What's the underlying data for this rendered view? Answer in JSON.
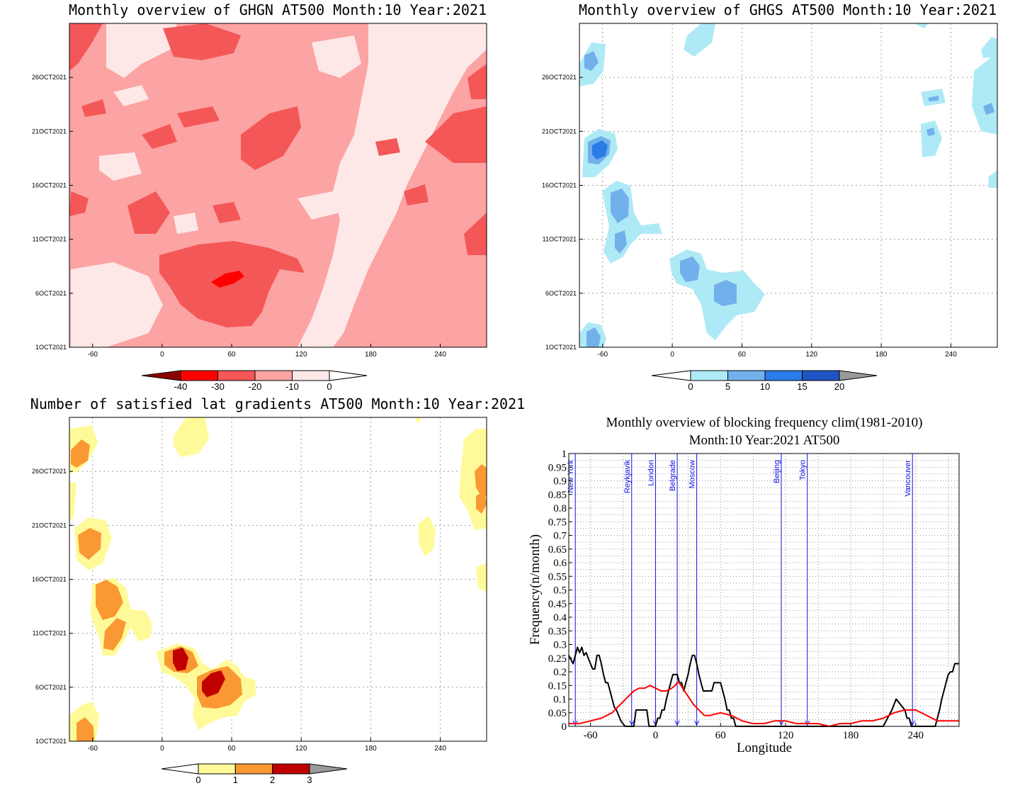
{
  "chart_data": [
    {
      "type": "heatmap",
      "title": "Monthly overview of GHGN AT500 Month:10 Year:2021",
      "x_ticks": [
        "-60",
        "0",
        "60",
        "120",
        "180",
        "240"
      ],
      "x_tick_values": [
        -60,
        0,
        60,
        120,
        180,
        240
      ],
      "xlim": [
        -80,
        280
      ],
      "y_ticks": [
        "1OCT2021",
        "6OCT2021",
        "11OCT2021",
        "16OCT2021",
        "21OCT2021",
        "26OCT2021"
      ],
      "y_tick_values": [
        1,
        6,
        11,
        16,
        21,
        26
      ],
      "ylim": [
        1,
        31
      ],
      "grid": false,
      "colorbar": {
        "levels": [
          -40,
          -30,
          -20,
          -10,
          0
        ],
        "labels": [
          "-40",
          "-30",
          "-20",
          "-10",
          "0"
        ],
        "colors": [
          "#8b0000",
          "#ff0000",
          "#f45757",
          "#fca3a3",
          "#fde7e7",
          "#ffffff"
        ]
      },
      "regions": [
        {
          "level": "-10 to 0",
          "color": "#fde7e7",
          "x": [
            150,
            280
          ],
          "y": [
            1,
            31
          ]
        },
        {
          "level": "-20 to -10",
          "color": "#fca3a3",
          "x": [
            -80,
            160
          ],
          "y": [
            1,
            31
          ]
        },
        {
          "level": "-30 to -20",
          "color": "#f45757",
          "x": [
            10,
            110
          ],
          "y": [
            5,
            10
          ]
        },
        {
          "level": "-40 to -30",
          "color": "#ff0000",
          "x": [
            38,
            56
          ],
          "y": [
            7,
            8
          ]
        }
      ]
    },
    {
      "type": "heatmap",
      "title": "Monthly overview of GHGS AT500 Month:10 Year:2021",
      "x_ticks": [
        "-60",
        "0",
        "60",
        "120",
        "180",
        "240"
      ],
      "x_tick_values": [
        -60,
        0,
        60,
        120,
        180,
        240
      ],
      "xlim": [
        -80,
        280
      ],
      "y_ticks": [
        "1OCT2021",
        "6OCT2021",
        "11OCT2021",
        "16OCT2021",
        "21OCT2021",
        "26OCT2021"
      ],
      "y_tick_values": [
        1,
        6,
        11,
        16,
        21,
        26
      ],
      "ylim": [
        1,
        31
      ],
      "grid": true,
      "colorbar": {
        "levels": [
          0,
          5,
          10,
          15,
          20
        ],
        "labels": [
          "0",
          "5",
          "10",
          "15",
          "20"
        ],
        "colors": [
          "#ffffff",
          "#aeeaf5",
          "#72b0ec",
          "#2a7ce6",
          "#1f54c4",
          "#9a9a9a"
        ]
      },
      "regions": [
        {
          "level": "0 to 5",
          "color": "#aeeaf5",
          "x": [
            -75,
            -50
          ],
          "y": [
            16,
            22
          ]
        },
        {
          "level": "5 to 10",
          "color": "#72b0ec",
          "x": [
            30,
            50
          ],
          "y": [
            5,
            7
          ]
        },
        {
          "level": "10 to 15",
          "color": "#2a7ce6",
          "x": [
            -70,
            -60
          ],
          "y": [
            18,
            20
          ]
        }
      ]
    },
    {
      "type": "heatmap",
      "title": "Number of satisfied lat gradients AT500 Month:10 Year:2021",
      "x_ticks": [
        "-60",
        "0",
        "60",
        "120",
        "180",
        "240"
      ],
      "x_tick_values": [
        -60,
        0,
        60,
        120,
        180,
        240
      ],
      "xlim": [
        -80,
        280
      ],
      "y_ticks": [
        "1OCT2021",
        "6OCT2021",
        "11OCT2021",
        "16OCT2021",
        "21OCT2021",
        "26OCT2021"
      ],
      "y_tick_values": [
        1,
        6,
        11,
        16,
        21,
        26
      ],
      "ylim": [
        1,
        31
      ],
      "grid": true,
      "colorbar": {
        "levels": [
          0,
          1,
          2,
          3
        ],
        "labels": [
          "0",
          "1",
          "2",
          "3"
        ],
        "colors": [
          "#ffffff",
          "#fffa99",
          "#fa9933",
          "#c00000",
          "#9a9a9a"
        ]
      },
      "regions": [
        {
          "level": "1 to 2",
          "color": "#fa9933",
          "x": [
            30,
            60
          ],
          "y": [
            5,
            8
          ]
        },
        {
          "level": "2 to 3",
          "color": "#c00000",
          "x": [
            5,
            20
          ],
          "y": [
            8,
            10
          ]
        },
        {
          "level": "2 to 3",
          "color": "#c00000",
          "x": [
            35,
            55
          ],
          "y": [
            6,
            7
          ]
        }
      ]
    },
    {
      "type": "line",
      "title": "Monthly overview of blocking frequency clim(1981-2010)",
      "subtitle": "Month:10 Year:2021  AT500",
      "xlabel": "Longitude",
      "ylabel": "Frequency(n/month)",
      "xlim": [
        -80,
        280
      ],
      "ylim": [
        0,
        1
      ],
      "x_ticks": [
        "-60",
        "0",
        "60",
        "120",
        "180",
        "240"
      ],
      "x_tick_values": [
        -60,
        0,
        60,
        120,
        180,
        240
      ],
      "y_ticks": [
        "0",
        "0.05",
        "0.1",
        "0.15",
        "0.2",
        "0.25",
        "0.3",
        "0.35",
        "0.4",
        "0.45",
        "0.5",
        "0.55",
        "0.6",
        "0.65",
        "0.7",
        "0.75",
        "0.8",
        "0.85",
        "0.9",
        "0.95",
        "1"
      ],
      "grid": true,
      "cities": [
        {
          "name": "New York",
          "lon": -74
        },
        {
          "name": "Reykjavik",
          "lon": -22
        },
        {
          "name": "London",
          "lon": 0
        },
        {
          "name": "Belgrade",
          "lon": 20
        },
        {
          "name": "Moscow",
          "lon": 38
        },
        {
          "name": "Beijing",
          "lon": 116
        },
        {
          "name": "Tokyo",
          "lon": 140
        },
        {
          "name": "Vancouver",
          "lon": 237
        }
      ],
      "series": [
        {
          "color": "#000000",
          "x": [
            -80,
            -76,
            -72,
            -70,
            -68,
            -66,
            -64,
            -62,
            -60,
            -58,
            -56,
            -54,
            -52,
            -50,
            -48,
            -46,
            -44,
            -42,
            -40,
            -38,
            -36,
            -34,
            -32,
            -30,
            -28,
            -26,
            -24,
            -22,
            -20,
            -18,
            -16,
            -14,
            -12,
            -10,
            -8,
            -6,
            -4,
            -2,
            0,
            2,
            4,
            6,
            8,
            10,
            12,
            14,
            16,
            18,
            20,
            22,
            24,
            26,
            28,
            30,
            32,
            34,
            36,
            38,
            40,
            42,
            44,
            46,
            48,
            50,
            52,
            54,
            56,
            58,
            60,
            62,
            64,
            66,
            68,
            70,
            72,
            74,
            76,
            80,
            100,
            120,
            140,
            160,
            180,
            200,
            210,
            214,
            218,
            222,
            226,
            230,
            232,
            234,
            236,
            240,
            250,
            256,
            258,
            260,
            262,
            264,
            266,
            268,
            270,
            272,
            274,
            276,
            278,
            280
          ],
          "y": [
            0.26,
            0.23,
            0.29,
            0.27,
            0.29,
            0.26,
            0.27,
            0.25,
            0.23,
            0.21,
            0.21,
            0.26,
            0.26,
            0.23,
            0.19,
            0.16,
            0.16,
            0.13,
            0.1,
            0.07,
            0.06,
            0.04,
            0.02,
            0.01,
            0.0,
            0.0,
            0.0,
            0.0,
            0.0,
            0.06,
            0.06,
            0.06,
            0.06,
            0.06,
            0.06,
            0.0,
            0.0,
            0.0,
            0.0,
            0.03,
            0.03,
            0.06,
            0.06,
            0.1,
            0.13,
            0.16,
            0.19,
            0.19,
            0.19,
            0.16,
            0.16,
            0.13,
            0.16,
            0.19,
            0.23,
            0.26,
            0.26,
            0.23,
            0.19,
            0.16,
            0.13,
            0.13,
            0.13,
            0.13,
            0.13,
            0.16,
            0.16,
            0.16,
            0.16,
            0.13,
            0.1,
            0.06,
            0.06,
            0.03,
            0.03,
            0.0,
            0.0,
            0.0,
            0.0,
            0.0,
            0.0,
            0.0,
            0.0,
            0.0,
            0.0,
            0.03,
            0.06,
            0.1,
            0.08,
            0.06,
            0.03,
            0.03,
            0.0,
            0.0,
            0.0,
            0.0,
            0.0,
            0.03,
            0.06,
            0.1,
            0.13,
            0.16,
            0.19,
            0.2,
            0.2,
            0.23,
            0.23,
            0.23
          ]
        },
        {
          "color": "#ff0000",
          "x": [
            -80,
            -70,
            -60,
            -50,
            -40,
            -35,
            -30,
            -25,
            -20,
            -15,
            -10,
            -5,
            0,
            5,
            10,
            15,
            18,
            20,
            22,
            25,
            30,
            35,
            40,
            45,
            50,
            60,
            70,
            80,
            90,
            100,
            110,
            120,
            130,
            140,
            150,
            160,
            170,
            180,
            190,
            200,
            210,
            220,
            230,
            240,
            250,
            260,
            270,
            280
          ],
          "y": [
            0.01,
            0.01,
            0.02,
            0.03,
            0.05,
            0.07,
            0.09,
            0.11,
            0.13,
            0.14,
            0.14,
            0.15,
            0.14,
            0.13,
            0.13,
            0.14,
            0.15,
            0.16,
            0.16,
            0.14,
            0.11,
            0.08,
            0.06,
            0.04,
            0.04,
            0.05,
            0.04,
            0.02,
            0.01,
            0.01,
            0.02,
            0.02,
            0.01,
            0.01,
            0.01,
            0.0,
            0.01,
            0.01,
            0.02,
            0.02,
            0.03,
            0.05,
            0.06,
            0.06,
            0.04,
            0.02,
            0.02,
            0.02
          ]
        }
      ]
    }
  ]
}
